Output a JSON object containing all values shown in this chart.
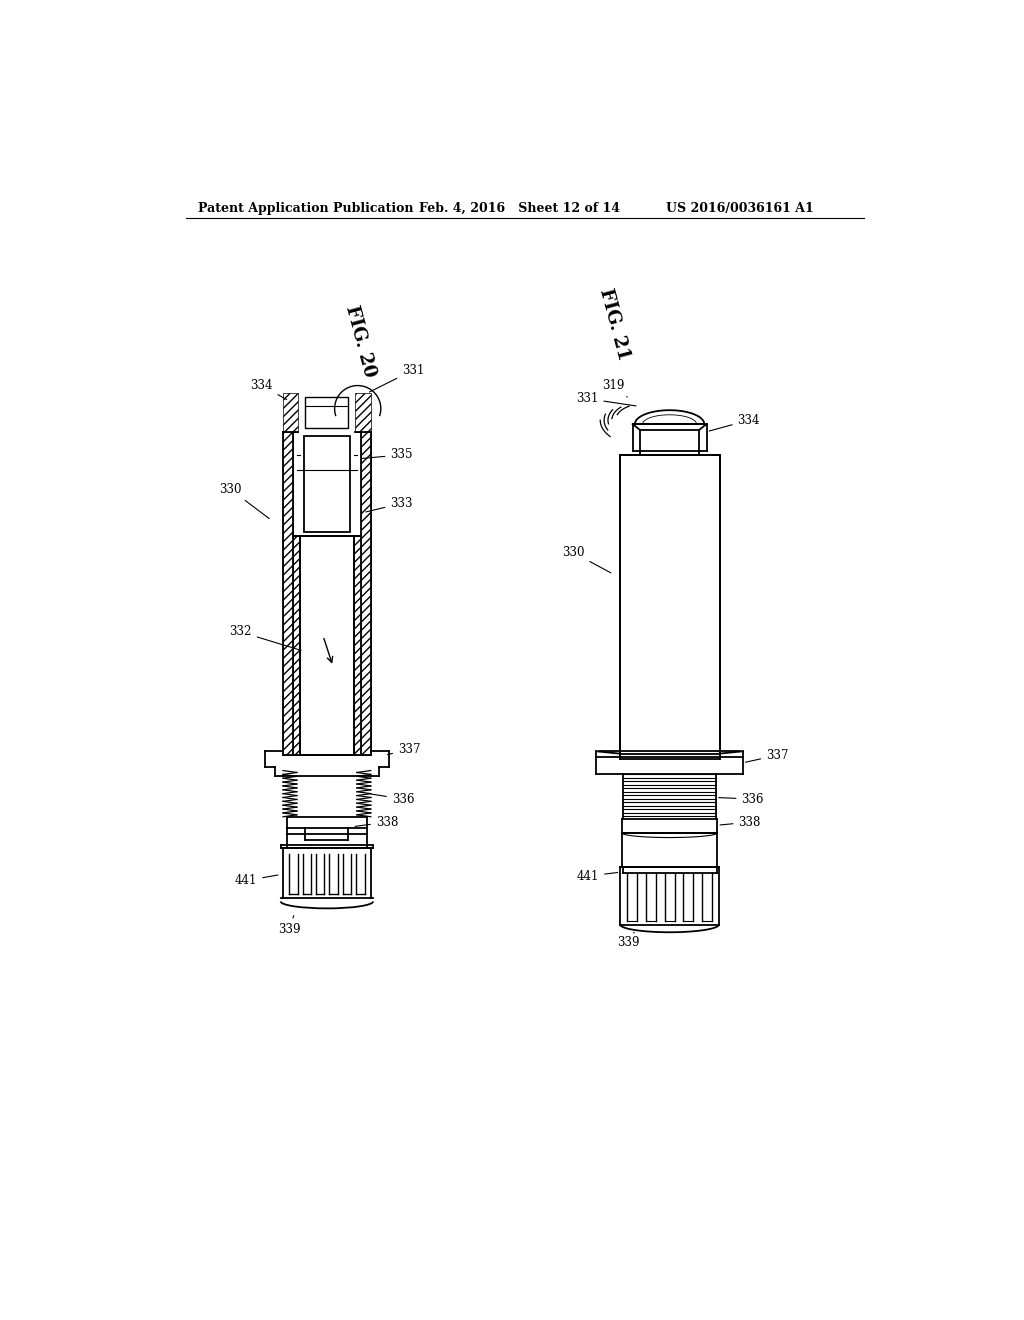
{
  "header_left": "Patent Application Publication",
  "header_mid": "Feb. 4, 2016   Sheet 12 of 14",
  "header_right": "US 2016/0036161 A1",
  "fig20_label": "FIG. 20",
  "fig21_label": "FIG. 21",
  "background_color": "#ffffff",
  "line_color": "#000000"
}
